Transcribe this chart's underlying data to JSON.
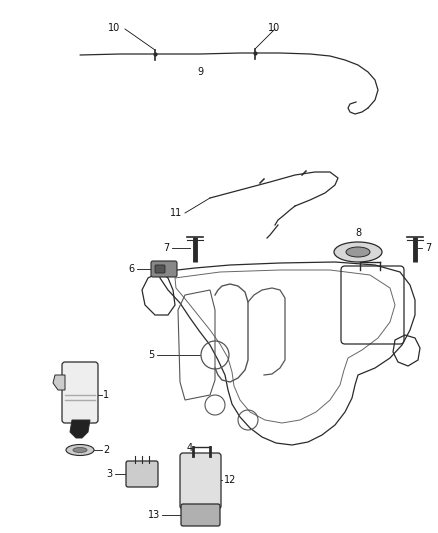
{
  "bg_color": "#ffffff",
  "fig_width": 4.38,
  "fig_height": 5.33,
  "dpi": 100,
  "line_color": "#2a2a2a",
  "label_color": "#111111",
  "label_fs": 7.0,
  "leader_lw": 0.6,
  "part_lw": 0.9
}
